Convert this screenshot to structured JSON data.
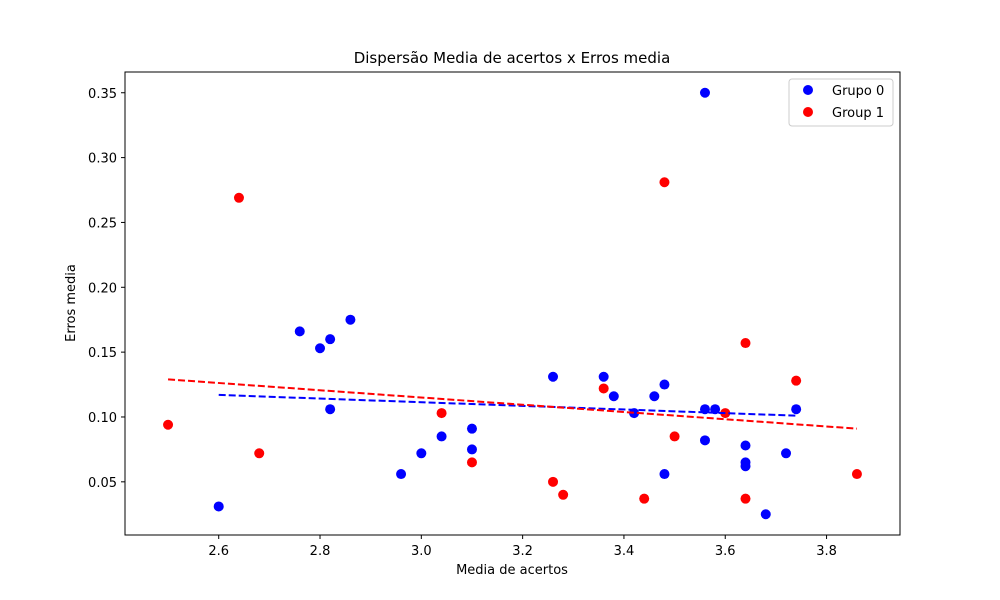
{
  "chart_data": {
    "type": "scatter",
    "title": "Dispersão Media de acertos x Erros media",
    "xlabel": "Media de acertos",
    "ylabel": "Erros media",
    "xlim": [
      2.415,
      3.945
    ],
    "ylim": [
      0.009,
      0.366
    ],
    "xticks": [
      "2.6",
      "2.8",
      "3.0",
      "3.2",
      "3.4",
      "3.6",
      "3.8"
    ],
    "xtick_values": [
      2.6,
      2.8,
      3.0,
      3.2,
      3.4,
      3.6,
      3.8
    ],
    "yticks": [
      "0.05",
      "0.10",
      "0.15",
      "0.20",
      "0.25",
      "0.30",
      "0.35"
    ],
    "ytick_values": [
      0.05,
      0.1,
      0.15,
      0.2,
      0.25,
      0.3,
      0.35
    ],
    "grid": false,
    "legend_position": "top-right",
    "series": [
      {
        "name": "Grupo 0",
        "color": "#0000ff",
        "points": [
          [
            2.6,
            0.031
          ],
          [
            2.76,
            0.166
          ],
          [
            2.8,
            0.153
          ],
          [
            2.82,
            0.16
          ],
          [
            2.82,
            0.106
          ],
          [
            2.86,
            0.175
          ],
          [
            2.96,
            0.056
          ],
          [
            3.0,
            0.072
          ],
          [
            3.04,
            0.085
          ],
          [
            3.1,
            0.091
          ],
          [
            3.1,
            0.075
          ],
          [
            3.26,
            0.131
          ],
          [
            3.36,
            0.131
          ],
          [
            3.38,
            0.116
          ],
          [
            3.42,
            0.103
          ],
          [
            3.46,
            0.116
          ],
          [
            3.48,
            0.125
          ],
          [
            3.48,
            0.056
          ],
          [
            3.56,
            0.35
          ],
          [
            3.56,
            0.106
          ],
          [
            3.56,
            0.082
          ],
          [
            3.58,
            0.106
          ],
          [
            3.64,
            0.078
          ],
          [
            3.64,
            0.065
          ],
          [
            3.64,
            0.062
          ],
          [
            3.68,
            0.025
          ],
          [
            3.72,
            0.072
          ],
          [
            3.74,
            0.106
          ]
        ],
        "trend": {
          "x": [
            2.6,
            3.74
          ],
          "y": [
            0.117,
            0.101
          ],
          "style": "dashed"
        }
      },
      {
        "name": "Group 1",
        "color": "#ff0000",
        "points": [
          [
            2.5,
            0.094
          ],
          [
            2.64,
            0.269
          ],
          [
            2.68,
            0.072
          ],
          [
            3.04,
            0.103
          ],
          [
            3.1,
            0.065
          ],
          [
            3.26,
            0.05
          ],
          [
            3.28,
            0.04
          ],
          [
            3.36,
            0.122
          ],
          [
            3.44,
            0.037
          ],
          [
            3.48,
            0.281
          ],
          [
            3.5,
            0.085
          ],
          [
            3.6,
            0.103
          ],
          [
            3.64,
            0.157
          ],
          [
            3.64,
            0.037
          ],
          [
            3.74,
            0.128
          ],
          [
            3.86,
            0.056
          ]
        ],
        "trend": {
          "x": [
            2.5,
            3.86
          ],
          "y": [
            0.129,
            0.091
          ],
          "style": "dashed"
        }
      }
    ]
  }
}
